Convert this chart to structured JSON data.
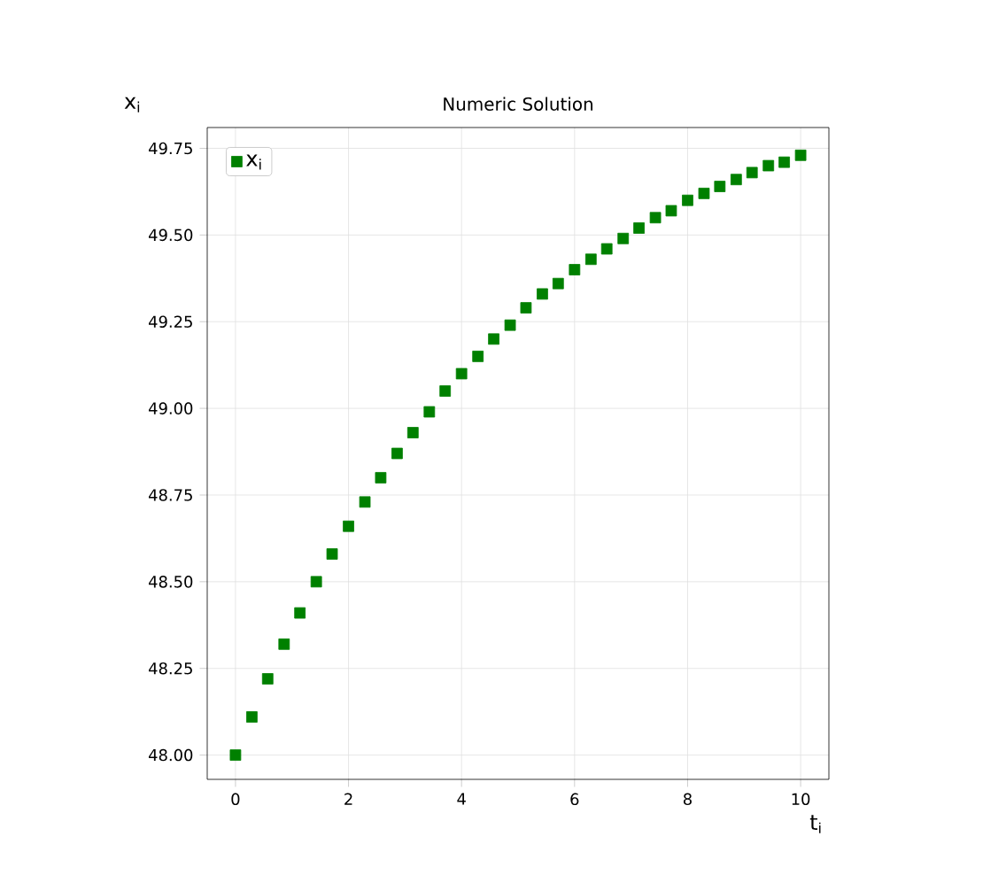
{
  "chart_data": {
    "type": "scatter",
    "title": "Numeric Solution",
    "xlabel": "t$_{i}$",
    "ylabel": "x$_{i}$",
    "series": [
      {
        "name": "x$_{i}$",
        "color": "#008000",
        "x": [
          0,
          0.29,
          0.57,
          0.86,
          1.14,
          1.43,
          1.71,
          2.0,
          2.29,
          2.57,
          2.86,
          3.14,
          3.43,
          3.71,
          4.0,
          4.29,
          4.57,
          4.86,
          5.14,
          5.43,
          5.71,
          6.0,
          6.29,
          6.57,
          6.86,
          7.14,
          7.43,
          7.71,
          8.0,
          8.29,
          8.57,
          8.86,
          9.14,
          9.43,
          9.71,
          10.0
        ],
        "values": [
          48.0,
          48.11,
          48.22,
          48.32,
          48.41,
          48.5,
          48.58,
          48.66,
          48.73,
          48.8,
          48.87,
          48.93,
          48.99,
          49.05,
          49.1,
          49.15,
          49.2,
          49.24,
          49.29,
          49.33,
          49.36,
          49.4,
          49.43,
          49.46,
          49.49,
          49.52,
          49.55,
          49.57,
          49.6,
          49.62,
          49.64,
          49.66,
          49.68,
          49.7,
          49.71,
          49.73
        ]
      }
    ],
    "xlim": [
      -0.5,
      10.5
    ],
    "ylim": [
      47.93,
      49.81
    ],
    "xticks": [
      0,
      2,
      4,
      6,
      8,
      10
    ],
    "yticks": [
      {
        "value": 48.0,
        "label": "48.00"
      },
      48.25,
      {
        "value": 48.5,
        "label": "48.50"
      },
      48.75,
      {
        "value": 49.0,
        "label": "49.00"
      },
      49.25,
      {
        "value": 49.5,
        "label": "49.50"
      },
      49.75
    ],
    "grid": true,
    "legend": "top left",
    "marker": "square"
  }
}
